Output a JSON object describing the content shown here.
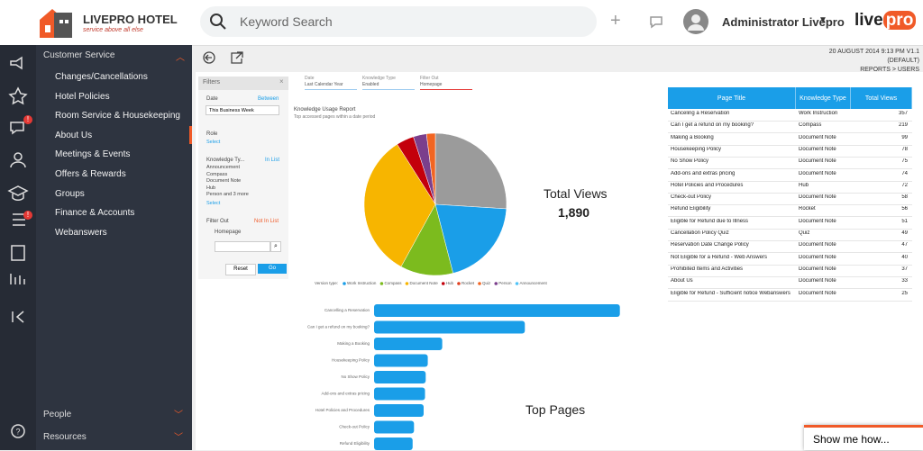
{
  "header": {
    "logo": "LIVEPRO HOTEL",
    "tagline": "service above all else",
    "search_placeholder": "Keyword Search",
    "user": "Administrator Livepro",
    "brand_a": "live",
    "brand_b": "pro"
  },
  "info": [
    "20 AUGUST 2014 9:13 PM V1.1",
    "(DEFAULT)",
    "REPORTS > USERS"
  ],
  "sidebar": {
    "section": "Customer Service",
    "items": [
      "Changes/Cancellations",
      "Hotel Policies",
      "Room Service & Housekeeping",
      "About Us",
      "Meetings & Events",
      "Offers & Rewards",
      "Groups",
      "Finance & Accounts",
      "Webanswers"
    ],
    "bottom": [
      "People",
      "Resources"
    ],
    "badge": "!"
  },
  "chips": [
    {
      "label": "Date",
      "value": "Last Calendar Year"
    },
    {
      "label": "Knowledge Type",
      "value": "Enabled"
    },
    {
      "label": "Filter Out",
      "value": "Homepage"
    }
  ],
  "filters": {
    "title": "Filters",
    "date_label": "Date",
    "date_op": "Between",
    "date_value": "This Business Week",
    "role_label": "Role",
    "role_select": "Select",
    "kt_label": "Knowledge Ty...",
    "kt_op": "In List",
    "kt_values": [
      "Announcement",
      "Compass",
      "Document Note",
      "Hub",
      "Person and 3 more"
    ],
    "kt_select": "Select",
    "fo_label": "Filter Out",
    "fo_op": "Not In List",
    "fo_value": "Homepage",
    "reset": "Reset",
    "go": "Go"
  },
  "report": {
    "title": "Knowledge Usage Report",
    "subtitle": "Top accessed pages within a date period"
  },
  "pie": {
    "type": "pie",
    "values": [
      26,
      20,
      12,
      33,
      4,
      3,
      2
    ],
    "colors": [
      "#9b9b9b",
      "#1a9ee8",
      "#7cbb1e",
      "#f7b500",
      "#c3000b",
      "#7b3f8c",
      "#f26522"
    ],
    "legend_title": "Version type:",
    "legend": [
      {
        "name": "Work Instruction",
        "color": "#1a9ee8"
      },
      {
        "name": "Compass",
        "color": "#7cbb1e"
      },
      {
        "name": "Document Note",
        "color": "#f7b500"
      },
      {
        "name": "Hub",
        "color": "#c3000b"
      },
      {
        "name": "Rocket",
        "color": "#e04020"
      },
      {
        "name": "Quiz",
        "color": "#f26522"
      },
      {
        "name": "Person",
        "color": "#7b3f8c"
      },
      {
        "name": "Announcement",
        "color": "#4fc3f7"
      }
    ],
    "total_label": "Total Views",
    "total": "1,890"
  },
  "top_pages": {
    "type": "bar",
    "title": "Top Pages",
    "color": "#1a9ee8",
    "xlim": [
      0,
      360
    ],
    "categories": [
      "Cancelling a Reservation",
      "Can I get a refund on my booking?",
      "Making a Booking",
      "Housekeeping Policy",
      "No Show Policy",
      "Add-ons and extras pricing",
      "Hotel Policies and Procedures",
      "Check-out Policy",
      "Refund Eligibility"
    ],
    "values": [
      357,
      219,
      99,
      78,
      75,
      74,
      72,
      58,
      56
    ]
  },
  "table": {
    "header": [
      "Page Title",
      "Knowledge Type",
      "Total Views"
    ],
    "rows": [
      [
        "Canceling a Reservation",
        "Work Instruction",
        "357"
      ],
      [
        "Can I get a refund on my booking?",
        "Compass",
        "219"
      ],
      [
        "Making a Booking",
        "Document Note",
        "99"
      ],
      [
        "Housekeeping Policy",
        "Document Note",
        "78"
      ],
      [
        "No Show Policy",
        "Document Note",
        "75"
      ],
      [
        "Add-ons and extras pricing",
        "Document Note",
        "74"
      ],
      [
        "Hotel Policies and Procedures",
        "Hub",
        "72"
      ],
      [
        "Check-out Policy",
        "Document Note",
        "58"
      ],
      [
        "Refund Eligibility",
        "Rocket",
        "56"
      ],
      [
        "Eligible for Refund due to Illness",
        "Document Note",
        "51"
      ],
      [
        "Cancellation Policy Quiz",
        "Quiz",
        "49"
      ],
      [
        "Reservation Date Change Policy",
        "Document Note",
        "47"
      ],
      [
        "Not Eligible for a Refund - Web Answers",
        "Document Note",
        "40"
      ],
      [
        "Prohibited Items and Activities",
        "Document Note",
        "37"
      ],
      [
        "About Us",
        "Document Note",
        "33"
      ],
      [
        "Eligible for Refund - Sufficient notice Webanswers",
        "Document Note",
        "25"
      ]
    ]
  },
  "help": "Show me how..."
}
